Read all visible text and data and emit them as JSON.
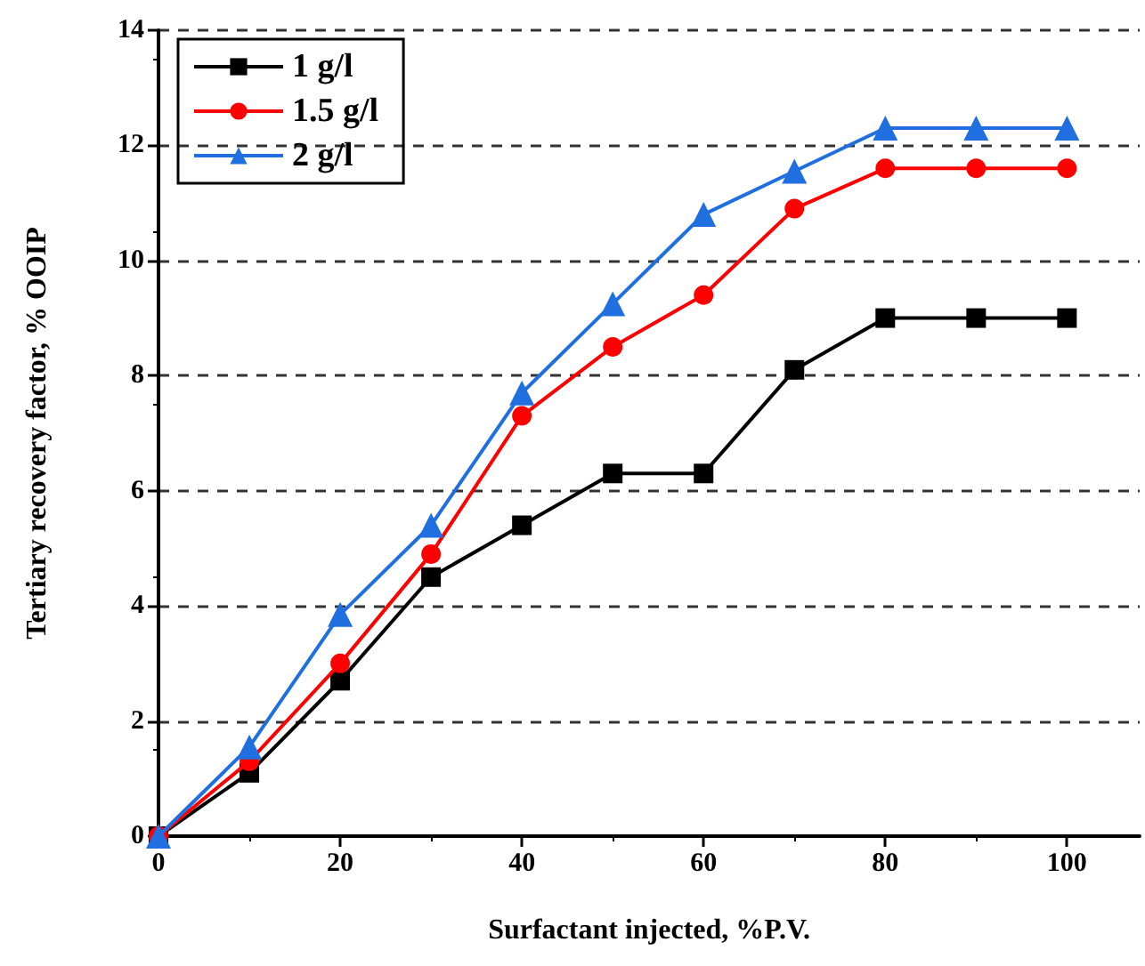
{
  "chart_data": {
    "type": "line",
    "xlabel": "Surfactant injected, %P.V.",
    "ylabel": "Tertiary recovery factor, % OOIP",
    "x": [
      0,
      10,
      20,
      30,
      40,
      50,
      60,
      70,
      80,
      90,
      100
    ],
    "series": [
      {
        "name": "1 g/l",
        "color": "#000000",
        "marker": "square",
        "values": [
          0,
          1.1,
          2.7,
          4.5,
          5.4,
          6.3,
          6.3,
          8.1,
          9.0,
          9.0,
          9.0
        ]
      },
      {
        "name": "1.5 g/l",
        "color": "#ff0000",
        "marker": "circle",
        "values": [
          0,
          1.3,
          3.0,
          4.9,
          7.3,
          8.5,
          9.4,
          10.9,
          11.6,
          11.6,
          11.6
        ]
      },
      {
        "name": "2 g/l",
        "color": "#1f6fe0",
        "marker": "triangle",
        "values": [
          0,
          1.55,
          3.85,
          5.4,
          7.7,
          9.25,
          10.8,
          11.55,
          12.3,
          12.3,
          12.3
        ]
      }
    ],
    "xlim": [
      0,
      108
    ],
    "xticks": [
      0,
      20,
      40,
      60,
      80,
      100
    ],
    "ylim": [
      0,
      14
    ],
    "yticks": [
      0,
      2,
      4,
      6,
      8,
      10,
      12,
      14
    ],
    "grid": "y",
    "legend": "top left",
    "line_style": "solid"
  }
}
